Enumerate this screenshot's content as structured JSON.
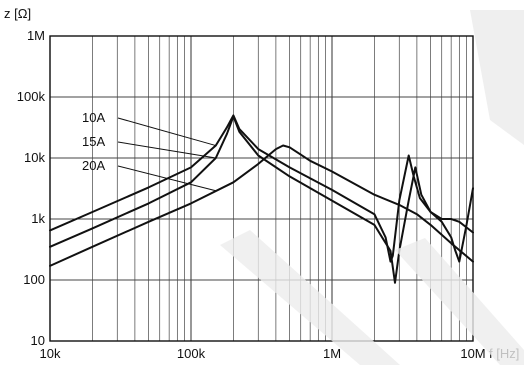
{
  "chart_data": {
    "type": "line",
    "title": "",
    "xlabel": "f [Hz]",
    "ylabel": "z [Ω]",
    "x_scale": "log",
    "y_scale": "log",
    "xlim": [
      10000,
      10000000
    ],
    "ylim": [
      10,
      1000000
    ],
    "grid": true,
    "x_ticks": [
      {
        "value": 10000,
        "label": "10k"
      },
      {
        "value": 100000,
        "label": "100k"
      },
      {
        "value": 1000000,
        "label": "1M"
      },
      {
        "value": 10000000,
        "label": "10M"
      }
    ],
    "y_ticks": [
      {
        "value": 10,
        "label": "10"
      },
      {
        "value": 100,
        "label": "100"
      },
      {
        "value": 1000,
        "label": "1k"
      },
      {
        "value": 10000,
        "label": "10k"
      },
      {
        "value": 100000,
        "label": "100k"
      },
      {
        "value": 1000000,
        "label": "1M"
      }
    ],
    "series": [
      {
        "name": "10A",
        "color": "#111111",
        "points": [
          [
            10000,
            650
          ],
          [
            20000,
            1300
          ],
          [
            50000,
            3300
          ],
          [
            100000,
            7000
          ],
          [
            150000,
            16000
          ],
          [
            180000,
            32000
          ],
          [
            200000,
            50000
          ],
          [
            220000,
            30000
          ],
          [
            300000,
            14000
          ],
          [
            500000,
            7000
          ],
          [
            1000000,
            3000
          ],
          [
            2000000,
            1200
          ],
          [
            2400000,
            500
          ],
          [
            2600000,
            200
          ],
          [
            2700000,
            250
          ],
          [
            3000000,
            2000
          ],
          [
            3500000,
            11000
          ],
          [
            3800000,
            5000
          ],
          [
            4200000,
            2200
          ],
          [
            5000000,
            1300
          ],
          [
            6000000,
            900
          ],
          [
            7000000,
            500
          ],
          [
            7500000,
            300
          ],
          [
            8000000,
            200
          ],
          [
            9000000,
            800
          ],
          [
            10000000,
            3200
          ]
        ]
      },
      {
        "name": "15A",
        "color": "#111111",
        "points": [
          [
            10000,
            350
          ],
          [
            20000,
            700
          ],
          [
            50000,
            1800
          ],
          [
            100000,
            4000
          ],
          [
            150000,
            10000
          ],
          [
            180000,
            25000
          ],
          [
            200000,
            48000
          ],
          [
            220000,
            27000
          ],
          [
            300000,
            11000
          ],
          [
            500000,
            5000
          ],
          [
            1000000,
            2000
          ],
          [
            2000000,
            800
          ],
          [
            2600000,
            300
          ],
          [
            2800000,
            90
          ],
          [
            3000000,
            300
          ],
          [
            3500000,
            2000
          ],
          [
            3900000,
            7000
          ],
          [
            4300000,
            2500
          ],
          [
            5000000,
            1300
          ],
          [
            6000000,
            1000
          ],
          [
            7000000,
            1000
          ],
          [
            8000000,
            900
          ],
          [
            10000000,
            600
          ]
        ]
      },
      {
        "name": "20A",
        "color": "#111111",
        "points": [
          [
            10000,
            170
          ],
          [
            20000,
            350
          ],
          [
            50000,
            900
          ],
          [
            100000,
            1800
          ],
          [
            200000,
            4000
          ],
          [
            300000,
            8000
          ],
          [
            400000,
            14000
          ],
          [
            450000,
            16000
          ],
          [
            500000,
            15000
          ],
          [
            700000,
            9000
          ],
          [
            1000000,
            6000
          ],
          [
            2000000,
            2500
          ],
          [
            3000000,
            1700
          ],
          [
            4000000,
            1200
          ],
          [
            5000000,
            800
          ],
          [
            7000000,
            400
          ],
          [
            10000000,
            200
          ]
        ]
      }
    ],
    "annotations": [
      "10A",
      "15A",
      "20A"
    ]
  }
}
